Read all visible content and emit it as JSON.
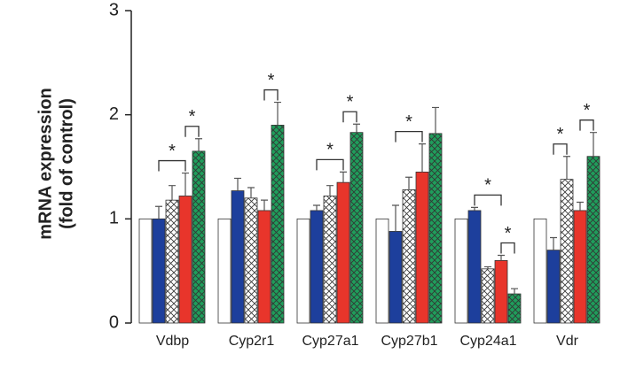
{
  "chart_data": {
    "type": "bar",
    "y_label": [
      "mRNA expression",
      "(fold of control)"
    ],
    "categories": [
      "Vdbp",
      "Cyp2r1",
      "Cyp27a1",
      "Cyp27b1",
      "Cyp24a1",
      "Vdr"
    ],
    "series": [
      {
        "color": "#ffffff",
        "pattern": "solid",
        "values": [
          1,
          1,
          1,
          1,
          1,
          1
        ],
        "errors": [
          0,
          0,
          0,
          0,
          0,
          0
        ]
      },
      {
        "color": "#1d3f9c",
        "pattern": "solid",
        "values": [
          1.0,
          1.27,
          1.08,
          0.88,
          1.08,
          0.7
        ],
        "errors": [
          0.12,
          0.12,
          0.05,
          0.25,
          0.03,
          0.12
        ]
      },
      {
        "color": "#ffffff",
        "pattern": "crosshatch",
        "values": [
          1.18,
          1.2,
          1.22,
          1.28,
          0.52,
          1.38
        ],
        "errors": [
          0.14,
          0.1,
          0.1,
          0.12,
          0.02,
          0.22
        ]
      },
      {
        "color": "#e8352b",
        "pattern": "solid",
        "values": [
          1.22,
          1.08,
          1.35,
          1.45,
          0.6,
          1.08
        ],
        "errors": [
          0.22,
          0.1,
          0.1,
          0.27,
          0.05,
          0.08
        ]
      },
      {
        "color": "#1f9d5b",
        "pattern": "crosshatch",
        "values": [
          1.65,
          1.9,
          1.83,
          1.82,
          0.28,
          1.6
        ],
        "errors": [
          0.12,
          0.22,
          0.08,
          0.25,
          0.05,
          0.23
        ]
      }
    ],
    "significance": [
      {
        "group": 0,
        "from": 1,
        "to": 3,
        "label": "*"
      },
      {
        "group": 0,
        "from": 3,
        "to": 4,
        "label": "*"
      },
      {
        "group": 1,
        "from": 3,
        "to": 4,
        "label": "*"
      },
      {
        "group": 2,
        "from": 1,
        "to": 3,
        "label": "*"
      },
      {
        "group": 2,
        "from": 3,
        "to": 4,
        "label": "*"
      },
      {
        "group": 3,
        "from": 1,
        "to": 3,
        "label": "*"
      },
      {
        "group": 4,
        "from": 1,
        "to": 3,
        "label": "*"
      },
      {
        "group": 4,
        "from": 3,
        "to": 4,
        "label": "*"
      },
      {
        "group": 5,
        "from": 1,
        "to": 2,
        "label": "*"
      },
      {
        "group": 5,
        "from": 3,
        "to": 4,
        "label": "*"
      }
    ],
    "ylim": [
      0,
      3
    ],
    "yticks": [
      0,
      1,
      2,
      3
    ]
  }
}
